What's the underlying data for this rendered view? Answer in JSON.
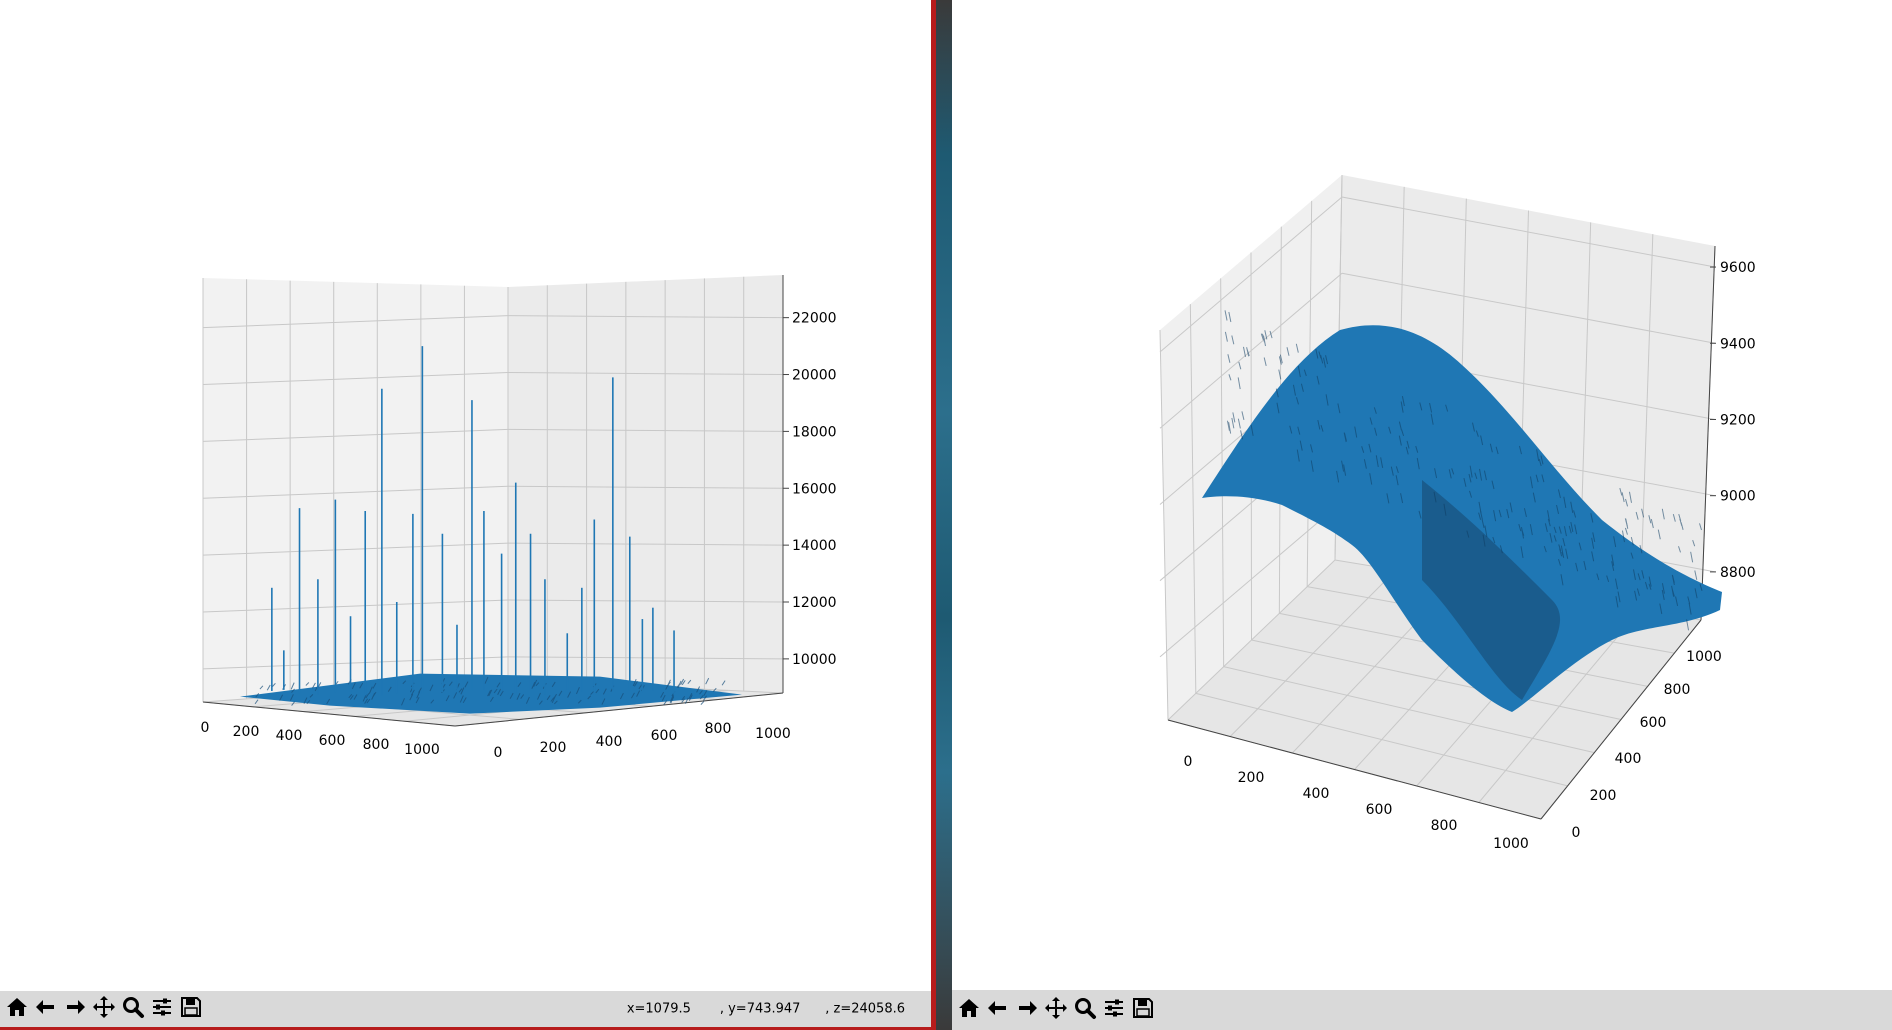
{
  "windows": [
    {
      "id": "left",
      "status": {
        "x": "x=1079.5",
        "y": ", y=743.947",
        "z": ", z=24058.6"
      },
      "toolbar": [
        {
          "name": "home-icon",
          "label": "Home"
        },
        {
          "name": "back-icon",
          "label": "Back"
        },
        {
          "name": "forward-icon",
          "label": "Forward"
        },
        {
          "name": "pan-icon",
          "label": "Pan"
        },
        {
          "name": "zoom-icon",
          "label": "Zoom"
        },
        {
          "name": "configure-subplots-icon",
          "label": "Configure subplots"
        },
        {
          "name": "save-icon",
          "label": "Save"
        }
      ]
    },
    {
      "id": "right",
      "toolbar": [
        {
          "name": "home-icon",
          "label": "Home"
        },
        {
          "name": "back-icon",
          "label": "Back"
        },
        {
          "name": "forward-icon",
          "label": "Forward"
        },
        {
          "name": "pan-icon",
          "label": "Pan"
        },
        {
          "name": "zoom-icon",
          "label": "Zoom"
        },
        {
          "name": "configure-subplots-icon",
          "label": "Configure subplots"
        },
        {
          "name": "save-icon",
          "label": "Save"
        }
      ]
    }
  ],
  "chart_data": [
    {
      "type": "surface",
      "view": "low elevation, side view",
      "surface_color": "#1f77b4",
      "x_ticks": [
        "0",
        "200",
        "400",
        "600",
        "800",
        "1000"
      ],
      "y_ticks": [
        "0",
        "200",
        "400",
        "600",
        "800",
        "1000"
      ],
      "z_ticks": [
        "10000",
        "12000",
        "14000",
        "16000",
        "18000",
        "20000",
        "22000"
      ],
      "xlim": [
        0,
        1079
      ],
      "ylim": [
        0,
        1000
      ],
      "zlim": [
        8800,
        23500
      ],
      "baseline_z": 9200,
      "spikes_z": [
        12500,
        10300,
        15300,
        12800,
        15600,
        11500,
        15200,
        19500,
        12000,
        15100,
        21000,
        14400,
        11200,
        19100,
        15200,
        13700,
        16200,
        14400,
        12800,
        10900,
        12500,
        14900,
        19900,
        14300,
        11400,
        11800,
        11000
      ]
    },
    {
      "type": "surface",
      "view": "elevated perspective",
      "surface_color": "#1f77b4",
      "x_ticks": [
        "0",
        "200",
        "400",
        "600",
        "800",
        "1000"
      ],
      "y_ticks": [
        "0",
        "200",
        "400",
        "600",
        "800",
        "1000"
      ],
      "z_ticks": [
        "8800",
        "9000",
        "9200",
        "9400",
        "9600"
      ],
      "xlim": [
        0,
        1079
      ],
      "ylim": [
        0,
        1079
      ],
      "zlim": [
        8700,
        9650
      ],
      "surface_range_z": [
        8750,
        9480
      ]
    }
  ]
}
